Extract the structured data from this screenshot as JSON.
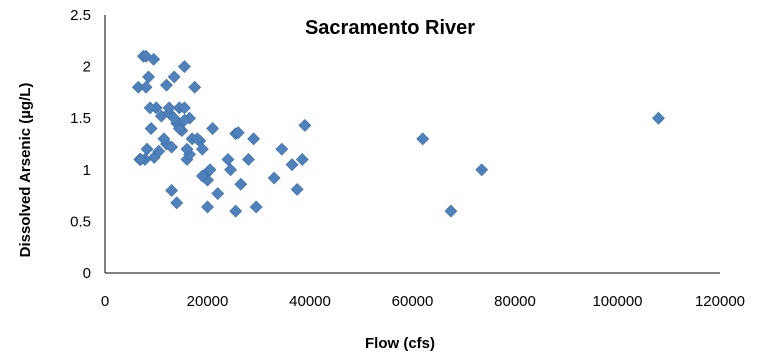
{
  "chart_data": {
    "type": "scatter",
    "title": "Sacramento River",
    "xlabel": "Flow (cfs)",
    "ylabel": "Dissolved Arsenic (µg/L)",
    "xlim": [
      0,
      120000
    ],
    "ylim": [
      0,
      2.5
    ],
    "xticks": [
      "0",
      "20000",
      "40000",
      "60000",
      "80000",
      "100000",
      "120000"
    ],
    "yticks": [
      "0",
      "0.5",
      "1",
      "1.5",
      "2",
      "2.5"
    ],
    "grid": false,
    "legend": "none",
    "marker_color": "#4F81BD",
    "series": [
      {
        "x": [
          6500,
          7500,
          8000,
          8500,
          9500,
          6800,
          7800,
          8200,
          9000,
          10000,
          8800,
          9600,
          11000,
          12000,
          13500,
          14000,
          15500,
          16500,
          17500,
          12000,
          13000,
          14500,
          15000,
          16000,
          17000,
          18500,
          19500,
          10500,
          11500,
          12500,
          13500,
          14500,
          15500,
          16500,
          18000,
          19000,
          20000,
          21000,
          22000,
          24000,
          24500,
          25500,
          26000,
          26500,
          28000,
          29000,
          33000,
          34500,
          36500,
          37500,
          38500,
          39000,
          13000,
          14000,
          19000,
          20000,
          25500,
          29500,
          62000,
          67500,
          73500,
          108000,
          7000,
          8000,
          12500,
          16000,
          15500,
          20500
        ],
        "y": [
          1.8,
          2.1,
          2.1,
          1.9,
          2.07,
          1.1,
          1.1,
          1.2,
          1.4,
          1.6,
          1.6,
          1.12,
          1.52,
          1.82,
          1.9,
          1.45,
          2.0,
          1.5,
          1.8,
          1.25,
          1.22,
          1.6,
          1.38,
          1.1,
          1.3,
          1.28,
          0.95,
          1.18,
          1.3,
          1.55,
          1.5,
          1.4,
          1.6,
          1.15,
          1.3,
          1.2,
          0.9,
          1.4,
          0.77,
          1.1,
          1.0,
          1.35,
          1.36,
          0.86,
          1.1,
          1.3,
          0.92,
          1.2,
          1.05,
          0.81,
          1.1,
          1.43,
          0.8,
          0.68,
          0.94,
          0.64,
          0.6,
          0.64,
          1.3,
          0.6,
          1.0,
          1.5,
          1.1,
          1.8,
          1.6,
          1.2,
          1.48,
          1.0
        ]
      }
    ]
  }
}
